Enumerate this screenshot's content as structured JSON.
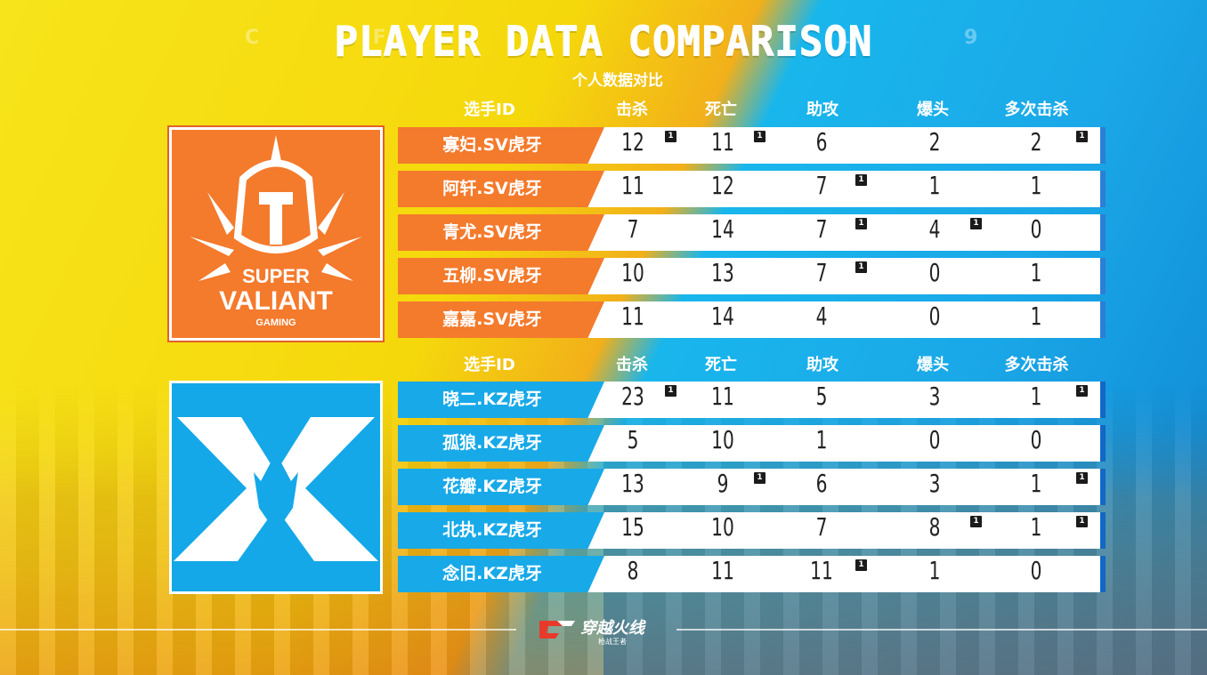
{
  "title": "PLAYER DATA COMPARISON",
  "subtitle": "个人数据对比",
  "deco_left": "C F",
  "deco_right": "1 9",
  "headers": [
    "选手ID",
    "击杀",
    "死亡",
    "助攻",
    "爆头",
    "多次击杀"
  ],
  "badge_label": "1",
  "teams": [
    {
      "logo_text": {
        "line1": "SUPER",
        "line2": "VALIANT",
        "line3": "GAMING"
      },
      "color": "#f47a2c",
      "players": [
        {
          "name": "寡妇.SV虎牙",
          "kills": "12",
          "deaths": "11",
          "assists": "6",
          "headshots": "2",
          "multikills": "2",
          "badges": [
            "kills",
            "deaths",
            "multikills"
          ]
        },
        {
          "name": "阿轩.SV虎牙",
          "kills": "11",
          "deaths": "12",
          "assists": "7",
          "headshots": "1",
          "multikills": "1",
          "badges": [
            "assists"
          ]
        },
        {
          "name": "青尤.SV虎牙",
          "kills": "7",
          "deaths": "14",
          "assists": "7",
          "headshots": "4",
          "multikills": "0",
          "badges": [
            "assists",
            "headshots"
          ]
        },
        {
          "name": "五柳.SV虎牙",
          "kills": "10",
          "deaths": "13",
          "assists": "7",
          "headshots": "0",
          "multikills": "1",
          "badges": [
            "assists"
          ]
        },
        {
          "name": "嘉嘉.SV虎牙",
          "kills": "11",
          "deaths": "14",
          "assists": "4",
          "headshots": "0",
          "multikills": "1",
          "badges": []
        }
      ]
    },
    {
      "logo_text": {
        "line1": "X"
      },
      "color": "#18a9e8",
      "players": [
        {
          "name": "晓二.KZ虎牙",
          "kills": "23",
          "deaths": "11",
          "assists": "5",
          "headshots": "3",
          "multikills": "1",
          "badges": [
            "kills",
            "multikills"
          ]
        },
        {
          "name": "孤狼.KZ虎牙",
          "kills": "5",
          "deaths": "10",
          "assists": "1",
          "headshots": "0",
          "multikills": "0",
          "badges": []
        },
        {
          "name": "花瓣.KZ虎牙",
          "kills": "13",
          "deaths": "9",
          "assists": "6",
          "headshots": "3",
          "multikills": "1",
          "badges": [
            "deaths",
            "multikills"
          ]
        },
        {
          "name": "北执.KZ虎牙",
          "kills": "15",
          "deaths": "10",
          "assists": "7",
          "headshots": "8",
          "multikills": "1",
          "badges": [
            "headshots",
            "multikills"
          ]
        },
        {
          "name": "念旧.KZ虎牙",
          "kills": "8",
          "deaths": "11",
          "assists": "11",
          "headshots": "1",
          "multikills": "0",
          "badges": [
            "assists"
          ]
        }
      ]
    }
  ],
  "footer": {
    "logo_main": "穿越火线",
    "logo_sub": "枪战王者"
  }
}
